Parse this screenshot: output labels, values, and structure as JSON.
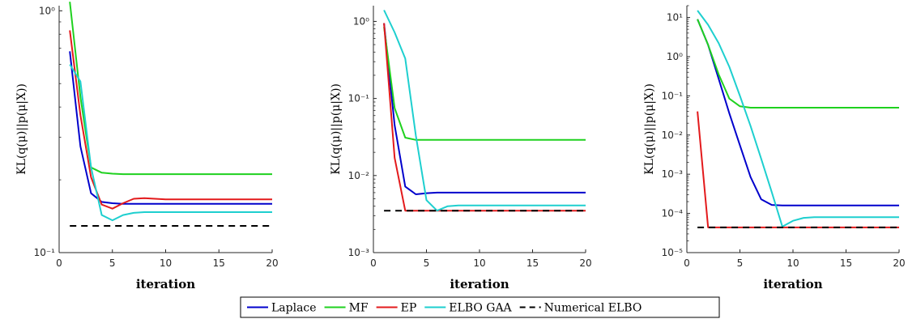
{
  "chart_data": [
    {
      "type": "line",
      "yscale": "log",
      "xlim": [
        0,
        20
      ],
      "ylim": [
        0.1,
        1.05
      ],
      "xticks": [
        0,
        5,
        10,
        15,
        20
      ],
      "xtick_labels": [
        "0",
        "5",
        "10",
        "15",
        "20"
      ],
      "yticks": [
        0.1,
        1
      ],
      "ytick_labels": [
        "10⁻¹",
        "10⁰"
      ],
      "xlabel": "iteration",
      "ylabel": "KL(q(μ)||p(μ|X))",
      "series": [
        {
          "name": "Laplace",
          "color": "#0000cc",
          "dash": "solid",
          "x": [
            1,
            2,
            3,
            4,
            5,
            6,
            7,
            8,
            9,
            10,
            11,
            12,
            13,
            14,
            15,
            16,
            17,
            18,
            19,
            20
          ],
          "y": [
            0.68,
            0.275,
            0.176,
            0.162,
            0.16,
            0.159,
            0.159,
            0.159,
            0.159,
            0.159,
            0.159,
            0.159,
            0.159,
            0.159,
            0.159,
            0.159,
            0.159,
            0.159,
            0.159,
            0.159
          ]
        },
        {
          "name": "MF",
          "color": "#1fd11f",
          "dash": "solid",
          "x": [
            1,
            2,
            3,
            4,
            5,
            6,
            7,
            8,
            9,
            10,
            11,
            12,
            13,
            14,
            15,
            16,
            17,
            18,
            19,
            20
          ],
          "y": [
            1.09,
            0.44,
            0.225,
            0.214,
            0.212,
            0.211,
            0.211,
            0.211,
            0.211,
            0.211,
            0.211,
            0.211,
            0.211,
            0.211,
            0.211,
            0.211,
            0.211,
            0.211,
            0.211,
            0.211
          ]
        },
        {
          "name": "EP",
          "color": "#e31a1c",
          "dash": "solid",
          "x": [
            1,
            2,
            3,
            4,
            5,
            6,
            7,
            8,
            9,
            10,
            11,
            12,
            13,
            14,
            15,
            16,
            17,
            18,
            19,
            20
          ],
          "y": [
            0.83,
            0.37,
            0.205,
            0.158,
            0.152,
            0.16,
            0.167,
            0.168,
            0.167,
            0.166,
            0.166,
            0.166,
            0.166,
            0.166,
            0.166,
            0.166,
            0.166,
            0.166,
            0.166,
            0.166
          ]
        },
        {
          "name": "ELBO GAA",
          "color": "#1ecfcf",
          "dash": "solid",
          "x": [
            1,
            2,
            3,
            4,
            5,
            6,
            7,
            8,
            9,
            10,
            11,
            12,
            13,
            14,
            15,
            16,
            17,
            18,
            19,
            20
          ],
          "y": [
            0.6,
            0.51,
            0.225,
            0.143,
            0.136,
            0.143,
            0.146,
            0.147,
            0.147,
            0.147,
            0.147,
            0.147,
            0.147,
            0.147,
            0.147,
            0.147,
            0.147,
            0.147,
            0.147,
            0.147
          ]
        },
        {
          "name": "Numerical ELBO",
          "color": "#000000",
          "dash": "dashed",
          "x": [
            1,
            20
          ],
          "y": [
            0.129,
            0.129
          ]
        }
      ]
    },
    {
      "type": "line",
      "yscale": "log",
      "xlim": [
        0,
        20
      ],
      "ylim": [
        0.001,
        1.6
      ],
      "xticks": [
        0,
        5,
        10,
        15,
        20
      ],
      "xtick_labels": [
        "0",
        "5",
        "10",
        "15",
        "20"
      ],
      "yticks": [
        0.001,
        0.01,
        0.1,
        1
      ],
      "ytick_labels": [
        "10⁻³",
        "10⁻²",
        "10⁻¹",
        "10⁰"
      ],
      "xlabel": "iteration",
      "ylabel": "KL(q(μ)||p(μ|X))",
      "series": [
        {
          "name": "Laplace",
          "color": "#0000cc",
          "dash": "solid",
          "x": [
            1,
            2,
            3,
            4,
            5,
            6,
            7,
            8,
            9,
            10,
            11,
            12,
            13,
            14,
            15,
            16,
            17,
            18,
            19,
            20
          ],
          "y": [
            0.95,
            0.045,
            0.0072,
            0.0057,
            0.0059,
            0.006,
            0.006,
            0.006,
            0.006,
            0.006,
            0.006,
            0.006,
            0.006,
            0.006,
            0.006,
            0.006,
            0.006,
            0.006,
            0.006,
            0.006
          ]
        },
        {
          "name": "MF",
          "color": "#1fd11f",
          "dash": "solid",
          "x": [
            1,
            2,
            3,
            4,
            5,
            6,
            7,
            8,
            9,
            10,
            11,
            12,
            13,
            14,
            15,
            16,
            17,
            18,
            19,
            20
          ],
          "y": [
            0.85,
            0.075,
            0.031,
            0.029,
            0.029,
            0.029,
            0.029,
            0.029,
            0.029,
            0.029,
            0.029,
            0.029,
            0.029,
            0.029,
            0.029,
            0.029,
            0.029,
            0.029,
            0.029,
            0.029
          ]
        },
        {
          "name": "EP",
          "color": "#e31a1c",
          "dash": "solid",
          "x": [
            1,
            2,
            3,
            4,
            5,
            6,
            7,
            8,
            9,
            10,
            11,
            12,
            13,
            14,
            15,
            16,
            17,
            18,
            19,
            20
          ],
          "y": [
            0.95,
            0.017,
            0.0035,
            0.0035,
            0.0035,
            0.0035,
            0.0035,
            0.0035,
            0.0035,
            0.0035,
            0.0035,
            0.0035,
            0.0035,
            0.0035,
            0.0035,
            0.0035,
            0.0035,
            0.0035,
            0.0035,
            0.0035
          ]
        },
        {
          "name": "ELBO GAA",
          "color": "#1ecfcf",
          "dash": "solid",
          "x": [
            1,
            2,
            3,
            4,
            5,
            6,
            7,
            8,
            9,
            10,
            11,
            12,
            13,
            14,
            15,
            16,
            17,
            18,
            19,
            20
          ],
          "y": [
            1.4,
            0.72,
            0.33,
            0.033,
            0.0048,
            0.0035,
            0.004,
            0.0041,
            0.0041,
            0.0041,
            0.0041,
            0.0041,
            0.0041,
            0.0041,
            0.0041,
            0.0041,
            0.0041,
            0.0041,
            0.0041,
            0.0041
          ]
        },
        {
          "name": "Numerical ELBO",
          "color": "#000000",
          "dash": "dashed",
          "x": [
            1,
            20
          ],
          "y": [
            0.0035,
            0.0035
          ]
        }
      ]
    },
    {
      "type": "line",
      "yscale": "log",
      "xlim": [
        0,
        20
      ],
      "ylim": [
        1e-05,
        20
      ],
      "xticks": [
        0,
        5,
        10,
        15,
        20
      ],
      "xtick_labels": [
        "0",
        "5",
        "10",
        "15",
        "20"
      ],
      "yticks": [
        1e-05,
        0.0001,
        0.001,
        0.01,
        0.1,
        1,
        10
      ],
      "ytick_labels": [
        "10⁻⁵",
        "10⁻⁴",
        "10⁻³",
        "10⁻²",
        "10⁻¹",
        "10⁰",
        "10¹"
      ],
      "xlabel": "iteration",
      "ylabel": "KL(q(μ)||p(μ|X))",
      "series": [
        {
          "name": "Laplace",
          "color": "#0000cc",
          "dash": "solid",
          "x": [
            1,
            2,
            3,
            4,
            5,
            6,
            7,
            8,
            9,
            10,
            11,
            12,
            13,
            14,
            15,
            16,
            17,
            18,
            19,
            20
          ],
          "y": [
            9.0,
            2.0,
            0.27,
            0.036,
            0.0055,
            0.00085,
            0.00023,
            0.000165,
            0.00016,
            0.00016,
            0.00016,
            0.00016,
            0.00016,
            0.00016,
            0.00016,
            0.00016,
            0.00016,
            0.00016,
            0.00016,
            0.00016
          ]
        },
        {
          "name": "MF",
          "color": "#1fd11f",
          "dash": "solid",
          "x": [
            1,
            2,
            3,
            4,
            5,
            6,
            7,
            8,
            9,
            10,
            11,
            12,
            13,
            14,
            15,
            16,
            17,
            18,
            19,
            20
          ],
          "y": [
            9.0,
            2.0,
            0.35,
            0.085,
            0.054,
            0.05,
            0.05,
            0.05,
            0.05,
            0.05,
            0.05,
            0.05,
            0.05,
            0.05,
            0.05,
            0.05,
            0.05,
            0.05,
            0.05,
            0.05
          ]
        },
        {
          "name": "EP",
          "color": "#e31a1c",
          "dash": "solid",
          "x": [
            1,
            2,
            3,
            4,
            5,
            6,
            7,
            8,
            9,
            10,
            11,
            12,
            13,
            14,
            15,
            16,
            17,
            18,
            19,
            20
          ],
          "y": [
            0.04,
            4.4e-05,
            4.4e-05,
            4.4e-05,
            4.4e-05,
            4.4e-05,
            4.4e-05,
            4.4e-05,
            4.4e-05,
            4.4e-05,
            4.4e-05,
            4.4e-05,
            4.4e-05,
            4.4e-05,
            4.4e-05,
            4.4e-05,
            4.4e-05,
            4.4e-05,
            4.4e-05,
            4.4e-05
          ]
        },
        {
          "name": "ELBO GAA",
          "color": "#1ecfcf",
          "dash": "solid",
          "x": [
            1,
            2,
            3,
            4,
            5,
            6,
            7,
            8,
            9,
            10,
            11,
            12,
            13,
            14,
            15,
            16,
            17,
            18,
            19,
            20
          ],
          "y": [
            15,
            6.5,
            2.2,
            0.55,
            0.1,
            0.017,
            0.0025,
            0.00035,
            4.6e-05,
            6.5e-05,
            7.7e-05,
            8e-05,
            8e-05,
            8e-05,
            8e-05,
            8e-05,
            8e-05,
            8e-05,
            8e-05,
            8e-05
          ]
        },
        {
          "name": "Numerical ELBO",
          "color": "#000000",
          "dash": "dashed",
          "x": [
            1,
            20
          ],
          "y": [
            4.4e-05,
            4.4e-05
          ]
        }
      ]
    }
  ],
  "legend": {
    "placement": "bottom-center",
    "entries": [
      {
        "label": "Laplace",
        "color": "#0000cc",
        "dash": "solid"
      },
      {
        "label": "MF",
        "color": "#1fd11f",
        "dash": "solid"
      },
      {
        "label": "EP",
        "color": "#e31a1c",
        "dash": "solid"
      },
      {
        "label": "ELBO GAA",
        "color": "#1ecfcf",
        "dash": "solid"
      },
      {
        "label": "Numerical ELBO",
        "color": "#000000",
        "dash": "dashed"
      }
    ]
  }
}
